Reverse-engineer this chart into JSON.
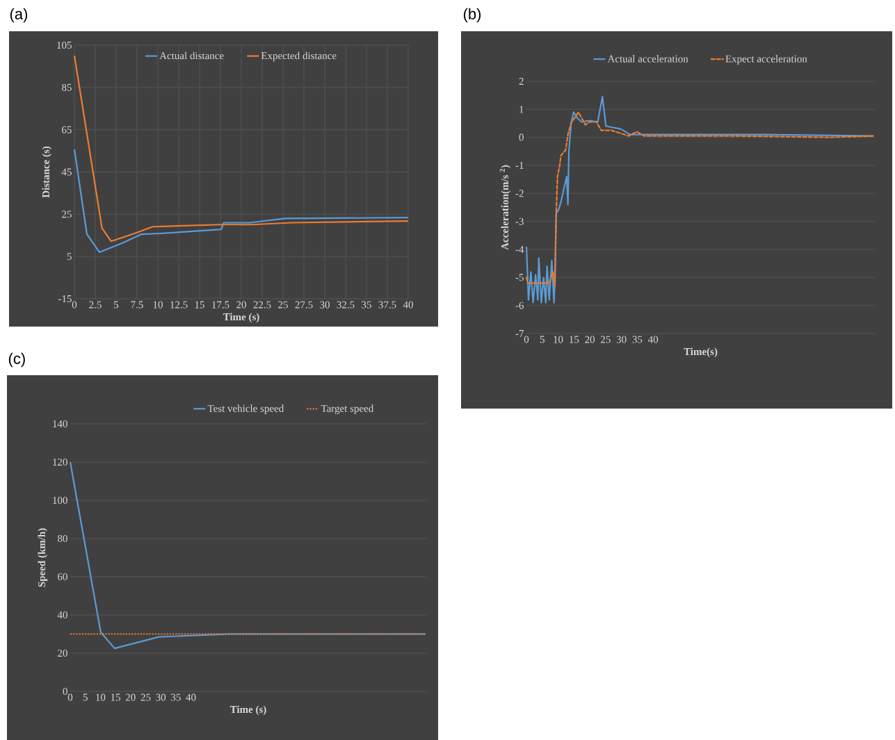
{
  "chart_data": [
    {
      "type": "line",
      "title": "(a)",
      "xlabel": "Time (s)",
      "ylabel": "Distance (s)",
      "xlim": [
        0,
        40
      ],
      "ylim": [
        -15,
        105
      ],
      "xticks": [
        0,
        2.5,
        5,
        7.5,
        10,
        12.5,
        15,
        17.5,
        20,
        22.5,
        25,
        27.5,
        30,
        32.5,
        35,
        37.5,
        40
      ],
      "yticks": [
        -15,
        5,
        25,
        45,
        65,
        85,
        105
      ],
      "grid": true,
      "legend": "top",
      "line_style": "solid",
      "series": [
        {
          "name": "Actual distance",
          "color": "#5b9bd5",
          "x": [
            0,
            1.5,
            3,
            5.7,
            8,
            10.25,
            17.6,
            17.9,
            21,
            25.25,
            40
          ],
          "values": [
            55.7,
            15.5,
            7,
            11.3,
            15.5,
            15.9,
            17.8,
            21,
            21,
            23,
            23.4
          ]
        },
        {
          "name": "Expected distance",
          "color": "#ed7d31",
          "x": [
            0,
            3.3,
            4.4,
            6.9,
            9.4,
            17.5,
            21.25,
            26,
            40
          ],
          "values": [
            100,
            18.5,
            12.2,
            15.5,
            19.1,
            20.1,
            20.1,
            21,
            21.8
          ]
        }
      ]
    },
    {
      "type": "line",
      "title": "(b)",
      "xlabel": "Time(s)",
      "ylabel": "Acceleration(m/s $^{2}$)",
      "xlim": [
        0,
        110
      ],
      "ylim": [
        -7,
        2
      ],
      "xticks": [
        0,
        5,
        10,
        15,
        20,
        25,
        30,
        35,
        40
      ],
      "yticks": [
        -7,
        -6,
        -5,
        -4,
        -3,
        -2,
        -1,
        0,
        1,
        2
      ],
      "grid": "y",
      "legend": "top",
      "series": [
        {
          "name": "Actual acceleration",
          "color": "#5b9bd5",
          "line_style": "solid",
          "x": [
            0,
            0.65,
            1.4,
            2.1,
            2.9,
            3.6,
            3.9,
            4.7,
            5.4,
            6.1,
            6.5,
            7.2,
            8.0,
            8.7,
            9.0,
            9.4,
            10.1,
            10.9,
            12.7,
            13.1,
            13.4,
            14.1,
            14.9,
            16.0,
            17.4,
            19.9,
            22.5,
            24.0,
            25.1,
            29.8,
            32.7,
            37.1,
            75,
            109.5
          ],
          "values": [
            -3.9,
            -5.8,
            -4.8,
            -5.9,
            -4.9,
            -5.8,
            -4.3,
            -5.9,
            -5.0,
            -5.9,
            -4.6,
            -5.8,
            -4.4,
            -5.9,
            -5.0,
            -2.7,
            -2.6,
            -2.3,
            -1.4,
            -2.4,
            -0.5,
            0.5,
            0.9,
            0.7,
            0.55,
            0.6,
            0.55,
            1.45,
            0.4,
            0.3,
            0.1,
            0.1,
            0.1,
            0.05
          ]
        },
        {
          "name": "Expect acceleration",
          "color": "#ed7d31",
          "line_style": "dashed",
          "x": [
            0,
            0.4,
            7.2,
            8.4,
            9.0,
            9.4,
            9.8,
            10.5,
            10.9,
            12.4,
            13.1,
            14.1,
            16.4,
            18.6,
            19.9,
            22.1,
            23.6,
            26.8,
            32.3,
            34.9,
            37.1,
            66,
            96,
            109.5
          ],
          "values": [
            -5.0,
            -5.2,
            -5.2,
            -4.8,
            -5.3,
            -2.7,
            -1.4,
            -1.0,
            -0.65,
            -0.45,
            0.1,
            0.5,
            0.9,
            0.45,
            0.55,
            0.55,
            0.25,
            0.25,
            0.05,
            0.2,
            0.05,
            0.05,
            0.0,
            0.05
          ]
        }
      ]
    },
    {
      "type": "line",
      "title": "(c)",
      "xlabel": "Time (s)",
      "ylabel": "Speed (km/h)",
      "xlim": [
        0,
        118
      ],
      "ylim": [
        0,
        140
      ],
      "xticks": [
        0,
        5,
        10,
        15,
        20,
        25,
        30,
        35,
        40
      ],
      "yticks": [
        0,
        20,
        40,
        60,
        80,
        100,
        120,
        140
      ],
      "grid": "y",
      "legend": "top",
      "series": [
        {
          "name": "Test vehicle speed",
          "color": "#5b9bd5",
          "line_style": "solid",
          "x": [
            0,
            10.1,
            14.7,
            29.4,
            52.6,
            117.7
          ],
          "values": [
            120,
            31,
            22.5,
            28.5,
            30,
            30
          ]
        },
        {
          "name": "Target speed",
          "color": "#ed7d31",
          "line_style": "dotted",
          "x": [
            0,
            117.7
          ],
          "values": [
            30,
            30
          ]
        }
      ]
    }
  ]
}
